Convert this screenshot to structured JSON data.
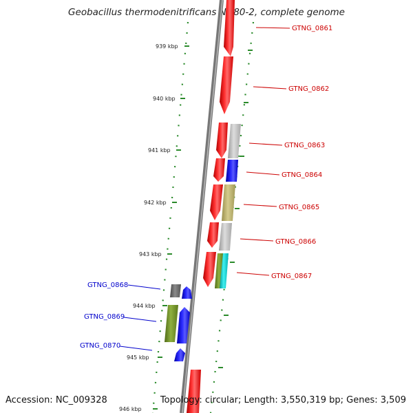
{
  "title": "Geobacillus thermodenitrificans NG80-2, complete genome",
  "footer": {
    "accession": "Accession: NC_009328",
    "summary": "Topology: circular; Length: 3,550,319 bp; Genes: 3,509"
  },
  "colors": {
    "ruler": "#2a8a2a",
    "backbone": "#888888",
    "forward_label": "#cc0000",
    "reverse_label": "#0000cc"
  },
  "scale_ticks": [
    {
      "label": "939 kbp"
    },
    {
      "label": "940 kbp"
    },
    {
      "label": "941 kbp"
    },
    {
      "label": "942 kbp"
    },
    {
      "label": "943 kbp"
    },
    {
      "label": "944 kbp"
    },
    {
      "label": "945 kbp"
    },
    {
      "label": "946 kbp"
    }
  ],
  "genes": [
    {
      "id": "GTNG_0861",
      "strand": "forward",
      "color": "#ff0000"
    },
    {
      "id": "GTNG_0862",
      "strand": "forward",
      "color": "#ff0000"
    },
    {
      "id": "GTNG_0863",
      "strand": "forward",
      "color": "#ff0000"
    },
    {
      "id": "GTNG_0864",
      "strand": "forward",
      "color": "#ff0000"
    },
    {
      "id": "GTNG_0865",
      "strand": "forward",
      "color": "#ff0000"
    },
    {
      "id": "GTNG_0866",
      "strand": "forward",
      "color": "#ff0000"
    },
    {
      "id": "GTNG_0867",
      "strand": "forward",
      "color": "#ff0000"
    },
    {
      "id": "GTNG_0868",
      "strand": "reverse",
      "color": "#0000ff"
    },
    {
      "id": "GTNG_0869",
      "strand": "reverse",
      "color": "#0000ff"
    },
    {
      "id": "GTNG_0870",
      "strand": "reverse",
      "color": "#0000ff"
    }
  ],
  "feature_colors": {
    "red": "#ff0000",
    "blue": "#0000ff",
    "silver": "#bdbdbd",
    "khaki": "#b8ae6a",
    "olive": "#6b8e23",
    "cyan": "#00cccc",
    "dark_gray": "#666666"
  }
}
